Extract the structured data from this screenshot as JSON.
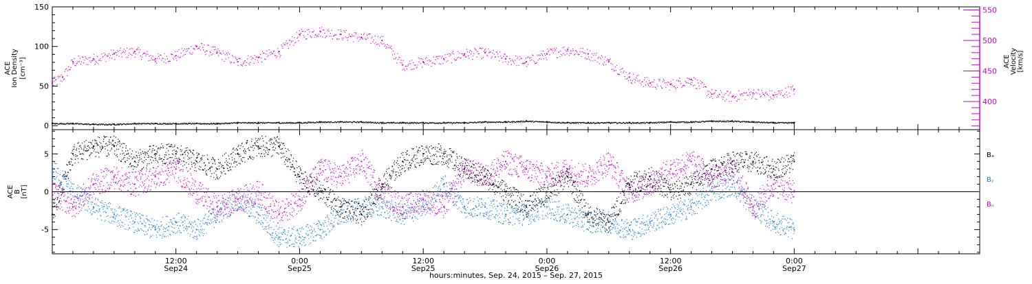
{
  "colors": {
    "black": "#000000",
    "magenta": "#cc00cc",
    "blue": "#1e7fd8"
  },
  "figure": {
    "xlabel": "hours:minutes, Sep. 24, 2015 – Sep. 27, 2015",
    "x_ticks": [
      {
        "hour": 12,
        "time": "12:00",
        "date": "Sep24"
      },
      {
        "hour": 24,
        "time": "0:00",
        "date": "Sep25"
      },
      {
        "hour": 36,
        "time": "12:00",
        "date": "Sep25"
      },
      {
        "hour": 48,
        "time": "0:00",
        "date": "Sep26"
      },
      {
        "hour": 60,
        "time": "12:00",
        "date": "Sep26"
      },
      {
        "hour": 72,
        "time": "0:00",
        "date": "Sep27"
      }
    ]
  },
  "chart_data": [
    {
      "type": "scatter",
      "panel": "top",
      "x_start": "2015-09-24 00:00",
      "x_range_hours": [
        0,
        90
      ],
      "left_axis": {
        "label_lines": [
          "ACE",
          "Ion Density"
        ],
        "unit": "[cm⁻³]",
        "ylim": [
          -5,
          150
        ],
        "ticks": [
          0,
          50,
          100,
          150
        ]
      },
      "right_axis": {
        "label_lines": [
          "ACE",
          "Velocity"
        ],
        "unit": "[km/s]",
        "ylim": [
          354,
          555
        ],
        "ticks": [
          400,
          450,
          500,
          550
        ]
      },
      "series": [
        {
          "name": "Ion Density",
          "axis": "left",
          "color": "black",
          "x": [
            0,
            2,
            4,
            6,
            8,
            10,
            12,
            14,
            16,
            18,
            20,
            22,
            24,
            26,
            28,
            30,
            32,
            34,
            36,
            38,
            40,
            42,
            44,
            46,
            48,
            50,
            52,
            54,
            56,
            58,
            60,
            62,
            64,
            66,
            68,
            70,
            72
          ],
          "y": [
            3,
            3,
            2,
            2,
            3,
            3,
            3,
            3,
            3,
            4,
            4,
            4,
            4,
            5,
            5,
            5,
            4,
            4,
            4,
            4,
            4,
            5,
            5,
            6,
            5,
            4,
            4,
            4,
            4,
            4,
            5,
            5,
            6,
            6,
            5,
            4,
            4
          ]
        },
        {
          "name": "Velocity",
          "axis": "right",
          "color": "magenta",
          "x": [
            0,
            1,
            2,
            4,
            6,
            8,
            10,
            12,
            14,
            16,
            18,
            20,
            22,
            24,
            26,
            28,
            30,
            32,
            34,
            36,
            38,
            40,
            42,
            44,
            46,
            48,
            50,
            52,
            54,
            56,
            58,
            60,
            62,
            64,
            66,
            68,
            70,
            72
          ],
          "y": [
            430,
            440,
            465,
            470,
            478,
            482,
            470,
            475,
            490,
            480,
            465,
            472,
            482,
            510,
            515,
            510,
            505,
            500,
            460,
            465,
            470,
            478,
            480,
            470,
            465,
            478,
            485,
            478,
            465,
            440,
            430,
            428,
            436,
            412,
            408,
            414,
            410,
            420
          ]
        }
      ]
    },
    {
      "type": "scatter",
      "panel": "bottom",
      "x_start": "2015-09-24 00:00",
      "x_range_hours": [
        0,
        90
      ],
      "left_axis": {
        "label_lines": [
          "ACE",
          "B"
        ],
        "unit": "[nT]",
        "ylim": [
          -8.2,
          8.2
        ],
        "ticks": [
          -5,
          0,
          5
        ]
      },
      "zero_line": true,
      "legend": [
        "Bₓ",
        "Bᵧ",
        "Bᵤ"
      ],
      "series": [
        {
          "name": "Bₓ",
          "color": "black",
          "x": [
            0,
            2,
            4,
            6,
            8,
            10,
            12,
            14,
            16,
            18,
            20,
            22,
            24,
            26,
            28,
            30,
            32,
            34,
            36,
            38,
            40,
            42,
            44,
            46,
            48,
            50,
            52,
            54,
            56,
            58,
            60,
            62,
            64,
            66,
            68,
            70,
            72
          ],
          "y": [
            -3,
            5,
            6,
            6,
            4,
            5,
            5,
            4,
            3,
            5,
            6,
            6,
            2,
            0,
            -2,
            -3,
            1,
            4,
            5,
            5,
            3,
            2,
            0,
            -2,
            0,
            2,
            -3,
            -4,
            1,
            2,
            0,
            1,
            3,
            4,
            4,
            3,
            4
          ]
        },
        {
          "name": "Bᵧ",
          "color": "blue",
          "x": [
            0,
            2,
            4,
            6,
            8,
            10,
            12,
            14,
            16,
            18,
            20,
            22,
            24,
            26,
            28,
            30,
            32,
            34,
            36,
            38,
            40,
            42,
            44,
            46,
            48,
            50,
            52,
            54,
            56,
            58,
            60,
            62,
            64,
            66,
            68,
            70,
            72
          ],
          "y": [
            3,
            0,
            -2,
            -3,
            -4,
            -5,
            -4,
            -5,
            -3,
            -1,
            -3,
            -6,
            -6,
            -5,
            -3,
            -2,
            -2,
            -3,
            -2,
            1,
            -2,
            -2,
            -3,
            -3,
            -2,
            -3,
            -4,
            -4,
            -5,
            -4,
            -3,
            -2,
            0,
            1,
            -2,
            -4,
            -5
          ]
        },
        {
          "name": "Bᵤ",
          "color": "magenta",
          "x": [
            0,
            2,
            4,
            6,
            8,
            10,
            12,
            14,
            16,
            18,
            20,
            22,
            24,
            26,
            28,
            30,
            32,
            34,
            36,
            38,
            40,
            42,
            44,
            46,
            48,
            50,
            52,
            54,
            56,
            58,
            60,
            62,
            64,
            66,
            68,
            70,
            72
          ],
          "y": [
            0,
            -2,
            1,
            2,
            1,
            2,
            3,
            0,
            -2,
            -1,
            0,
            -3,
            -1,
            3,
            2,
            4,
            0,
            -2,
            -1,
            -2,
            3,
            2,
            4,
            3,
            2,
            3,
            2,
            4,
            0,
            1,
            3,
            4,
            2,
            3,
            -2,
            1,
            0
          ]
        }
      ]
    }
  ]
}
